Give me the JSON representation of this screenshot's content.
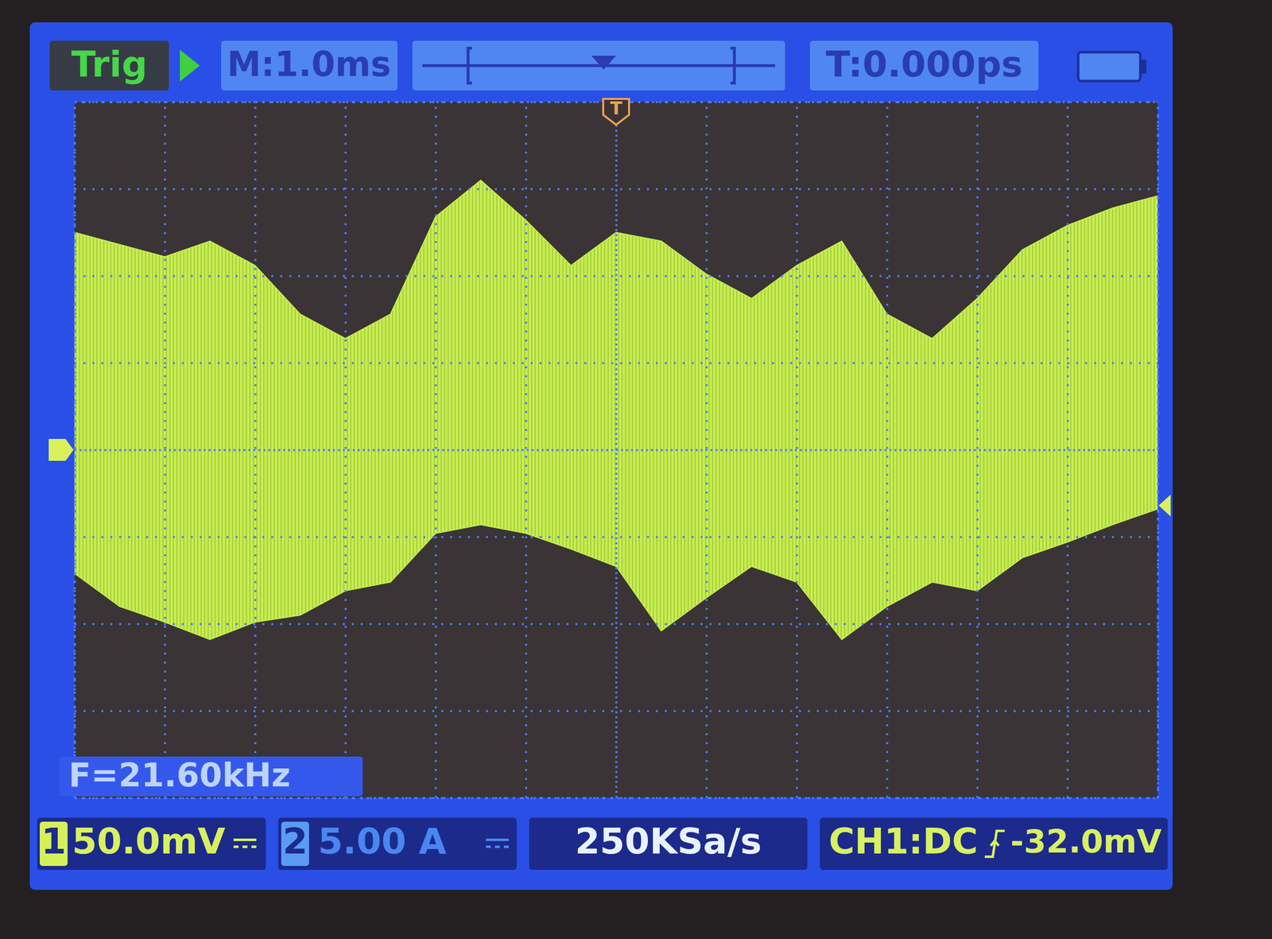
{
  "chart_data": {
    "type": "area",
    "x": [
      -6,
      -5.5,
      -5,
      -4.5,
      -4,
      -3.5,
      -3,
      -2.5,
      -2,
      -1.5,
      -1,
      -0.5,
      0,
      0.5,
      1,
      1.5,
      2,
      2.5,
      3,
      3.5,
      4,
      4.5,
      5,
      5.5,
      6
    ],
    "series": [
      {
        "color": "#c6ee4e",
        "upper": [
          125,
          118,
          111,
          120,
          106,
          78,
          64,
          78,
          134,
          155,
          132,
          106,
          125,
          120,
          101,
          87,
          106,
          120,
          78,
          64,
          87,
          115,
          129,
          139,
          146
        ],
        "lower": [
          -71,
          -90,
          -99,
          -109,
          -99,
          -95,
          -81,
          -76,
          -48,
          -43,
          -48,
          -57,
          -67,
          -104,
          -85,
          -67,
          -76,
          -109,
          -90,
          -76,
          -81,
          -62,
          -53,
          -43,
          -34
        ]
      }
    ],
    "xlim": [
      -6,
      6
    ],
    "xticks": [
      -6,
      -5,
      -4,
      -3,
      -2,
      -1,
      0,
      1,
      2,
      3,
      4,
      5,
      6
    ],
    "ylim": [
      -200,
      200
    ],
    "yticks": [
      -200,
      -150,
      -100,
      -50,
      0,
      50,
      100,
      150,
      200
    ],
    "grid": true,
    "tick_labels": false,
    "trigger_status": "Trig",
    "timebase": "M:1.0ms",
    "trigger_offset": "T:0.000ps",
    "trigger_marker": "T",
    "trigger_time": 0,
    "ch1_ground": 0,
    "frequency": "F=21.60kHz",
    "ch1_number": "1",
    "ch1_scale": "50.0mV",
    "ch2_number": "2",
    "ch2_scale": "5.00 A",
    "sample_rate": "250KSa/s",
    "trigger_source": "CH1:DC",
    "trigger_level": {
      "value": -32,
      "label": "-32.0mV"
    }
  }
}
